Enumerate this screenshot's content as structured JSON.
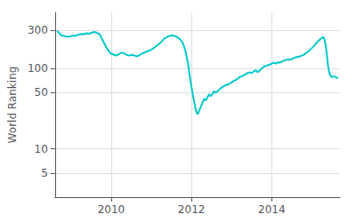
{
  "chart_data": {
    "type": "line",
    "ylabel": "World Ranking",
    "color": "#00c8c8",
    "log": "y",
    "grid": true,
    "xlim": [
      2008.6,
      2015.7
    ],
    "xticks": [
      2010,
      2012,
      2014
    ],
    "ylim": [
      2.5,
      500
    ],
    "yticks": [
      5,
      10,
      50,
      100,
      300
    ],
    "x": [
      2008.65,
      2008.75,
      2008.82,
      2008.9,
      2008.98,
      2009.05,
      2009.12,
      2009.18,
      2009.25,
      2009.32,
      2009.38,
      2009.45,
      2009.52,
      2009.58,
      2009.65,
      2009.72,
      2009.78,
      2009.85,
      2009.92,
      2009.98,
      2010.05,
      2010.12,
      2010.18,
      2010.25,
      2010.32,
      2010.38,
      2010.45,
      2010.52,
      2010.58,
      2010.65,
      2010.72,
      2010.78,
      2010.85,
      2010.92,
      2010.98,
      2011.05,
      2011.12,
      2011.18,
      2011.25,
      2011.32,
      2011.38,
      2011.45,
      2011.52,
      2011.58,
      2011.65,
      2011.72,
      2011.78,
      2011.82,
      2011.85,
      2011.88,
      2011.92,
      2011.95,
      2011.98,
      2012.01,
      2012.04,
      2012.07,
      2012.1,
      2012.13,
      2012.16,
      2012.19,
      2012.22,
      2012.25,
      2012.28,
      2012.32,
      2012.36,
      2012.4,
      2012.44,
      2012.48,
      2012.52,
      2012.56,
      2012.6,
      2012.65,
      2012.7,
      2012.75,
      2012.8,
      2012.85,
      2012.9,
      2012.95,
      2013.0,
      2013.05,
      2013.1,
      2013.15,
      2013.2,
      2013.25,
      2013.3,
      2013.35,
      2013.4,
      2013.45,
      2013.5,
      2013.55,
      2013.6,
      2013.65,
      2013.7,
      2013.75,
      2013.8,
      2013.85,
      2013.9,
      2013.95,
      2014.0,
      2014.05,
      2014.1,
      2014.15,
      2014.2,
      2014.25,
      2014.3,
      2014.35,
      2014.4,
      2014.45,
      2014.5,
      2014.55,
      2014.6,
      2014.65,
      2014.7,
      2014.75,
      2014.8,
      2014.85,
      2014.9,
      2014.95,
      2015.0,
      2015.05,
      2015.1,
      2015.15,
      2015.2,
      2015.25,
      2015.28,
      2015.31,
      2015.34,
      2015.37,
      2015.4,
      2015.43,
      2015.46,
      2015.5,
      2015.55,
      2015.6,
      2015.65
    ],
    "values": [
      295,
      260,
      255,
      250,
      252,
      258,
      255,
      265,
      270,
      268,
      275,
      272,
      280,
      285,
      278,
      265,
      230,
      195,
      170,
      155,
      150,
      145,
      150,
      158,
      155,
      148,
      145,
      148,
      145,
      142,
      148,
      155,
      160,
      165,
      170,
      178,
      190,
      200,
      215,
      235,
      245,
      255,
      260,
      255,
      245,
      230,
      210,
      185,
      165,
      140,
      110,
      85,
      68,
      55,
      45,
      38,
      32,
      28,
      27,
      30,
      32,
      35,
      38,
      42,
      40,
      44,
      48,
      45,
      48,
      52,
      50,
      52,
      55,
      58,
      60,
      62,
      63,
      65,
      67,
      70,
      72,
      75,
      78,
      80,
      82,
      85,
      88,
      90,
      88,
      92,
      95,
      90,
      95,
      100,
      105,
      108,
      110,
      112,
      115,
      118,
      115,
      120,
      118,
      122,
      125,
      128,
      130,
      128,
      132,
      135,
      138,
      140,
      142,
      145,
      148,
      155,
      162,
      170,
      180,
      190,
      205,
      218,
      230,
      240,
      248,
      235,
      200,
      155,
      110,
      90,
      82,
      78,
      80,
      78,
      75
    ]
  }
}
